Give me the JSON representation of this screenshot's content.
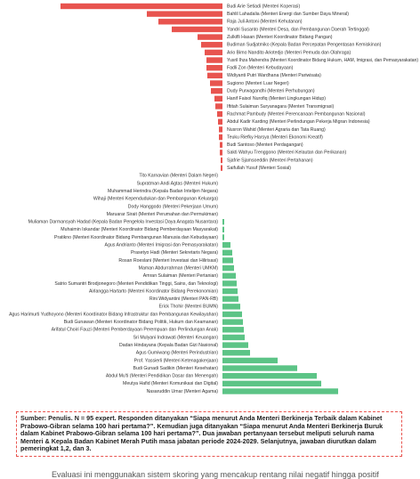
{
  "chart_data": {
    "type": "bar",
    "orientation": "horizontal",
    "categories": [
      "Budi Arie Setiadi (Menteri Koperasi)",
      "Bahlil Lahadalia (Menteri Energi dan Sumber Daya Mineral)",
      "Raja Juli Antoni (Menteri Kehutanan)",
      "Yandri Susanto (Menteri Desa, dan Pembangunan Daerah Tertinggal)",
      "Zulkifli Hasan (Menteri Koordinator Bidang Pangan)",
      "Budiman Sudjatmiko (Kepala Badan Percepatan Pengentasan Kemiskinan)",
      "Ario Bimo Nandito Ariotedjo (Menteri Pemuda dan Olahraga)",
      "Yusril Ihza Mahendra (Menteri Koordinator Bidang Hukum, HAM, Imigrasi, dan Pemasyarakatan)",
      "Fadli Zon (Menteri Kebudayaan)",
      "Widiyanti Putri Wardhana (Menteri Pariwisata)",
      "Sugiono (Menteri Luar Negeri)",
      "Dudy Purwagandhi (Menteri Perhubungan)",
      "Hanif Faisol Nurofiq (Menteri Lingkungan Hidup)",
      "Iftitah Sulaiman Suryanagara (Menteri Transmigrasi)",
      "Rachmat Pambudy (Menteri Perencanaan Pembangunan Nasional)",
      "Abdul Kadir Karding (Menteri Perlindungan Pekerja Migran Indonesia)",
      "Nusron Wahid (Menteri Agraria dan Tata Ruang)",
      "Teuku Riefky Harsya (Menteri Ekonomi Kreatif)",
      "Budi Santoso (Menteri Perdagangan)",
      "Sakti Wahyu Trenggono (Menteri Kelautan dan Perikanan)",
      "Sjafrie Sjamsoeddin (Menteri Pertahanan)",
      "Saifullah Yusuf (Menteri Sosial)",
      "Tito Karnavian (Menteri Dalam Negeri)",
      "Supratman Andi Agtas (Menteri Hukum)",
      "Muhammad Herindra (Kepala Badan Intelijen Negara)",
      "Wihaji (Menteri Kependudukan dan Pembangunan Keluarga)",
      "Dody Hanggodo (Menteri Pekerjaan Umum)",
      "Maruarar Sirait (Menteri Perumahan dan Permukiman)",
      "Muliaman Darmansyah Hadad (Kepala Badan Pengelola Investasi Daya Anagata Nusantara)",
      "Muhaimin Iskandar (Menteri Koordinator Bidang Pemberdayaan Masyarakat)",
      "Pratikno (Menteri Koordinator Bidang Pembangunan Manusia dan Kebudayaan)",
      "Agus Andrianto (Menteri Imigrasi dan Pemasyarakatan)",
      "Prasetyo Hadi (Menteri Sekretaris Negara)",
      "Rosan Roeslani (Menteri Investasi dan Hilirisasi)",
      "Maman Abdurrahman (Menteri UMKM)",
      "Amran Sulaiman (Menteri Pertanian)",
      "Satrio Sumantri Brodjonegoro (Menteri Pendidikan Tinggi, Sains, dan Teknologi)",
      "Airlangga Hartarto (Menteri Koordinator Bidang Perekonomian)",
      "Rini Widyantini (Menteri PAN-RB)",
      "Erick Thohir (Menteri BUMN)",
      "Agus Harimurti Yudhoyono (Menteri Koordinator Bidang Infrastruktur dan Pembangunan Kewilayahan)",
      "Budi Gunawan (Menteri Koordinator Bidang Politik, Hukum dan Keamanan)",
      "Arifatul Choiri Fauzi (Menteri Pemberdayaan Perempuan dan Perlindungan Anak)",
      "Sri Mulyani Indrawati (Menteri Keuangan)",
      "Dadan Hindayana (Kepala Badan Gizi Nasional)",
      "Agus Gumiwang (Menteri Perindustrian)",
      "Prof. Yassierli (Menteri Ketenagakerjaan)",
      "Budi Gunadi Sadikin (Menteri Kesehatan)",
      "Abdul Mu'ti (Menteri Pendidikan Dasar dan Menengah)",
      "Meutya Hafid (Menteri Komunikasi dan Digital)",
      "Nasaruddin Umar (Menteri Agama)"
    ],
    "values": [
      -18.2,
      -8.5,
      -7.2,
      -5.7,
      -2.8,
      -2.4,
      -2.0,
      -1.8,
      -1.8,
      -1.7,
      -1.4,
      -1.3,
      -0.9,
      -0.8,
      -0.6,
      -0.5,
      -0.4,
      -0.4,
      -0.3,
      -0.3,
      -0.2,
      -0.2,
      0,
      0,
      0,
      0,
      0,
      0,
      0.2,
      0.2,
      0.2,
      0.9,
      1.1,
      1.2,
      1.3,
      1.5,
      1.6,
      1.7,
      1.8,
      2.0,
      2.2,
      2.3,
      2.4,
      2.5,
      2.9,
      3.1,
      6.2,
      8.4,
      10.6,
      11.1,
      13.0
    ],
    "colors": {
      "negative": "#e8544f",
      "positive": "#5cc486"
    },
    "xlim": [
      -25,
      22.2
    ]
  },
  "note": "Sumber: Penulis. N = 95 expert. Responden ditanyakan “Siapa menurut Anda Menteri Berkinerja Terbaik dalam Kabinet Prabowo-Gibran selama 100 hari pertama?”. Kemudian juga ditanyakan “Siapa menurut Anda Menteri Berkinerja Buruk dalam Kabinet Prabowo-Gibran selama 100 hari pertama?”. Dua jawaban pertanyaan tersebut meliputi seluruh nama Menteri & Kepala Badan Kabinet Merah Putih masa jabatan periode 2024-2029. Selanjutnya, jawaban diurutkan dalam pemeringkat 1,2, dan 3.",
  "following_text": "Evaluasi ini menggunakan sistem skoring yang mencakup rentang nilai negatif hingga positif"
}
